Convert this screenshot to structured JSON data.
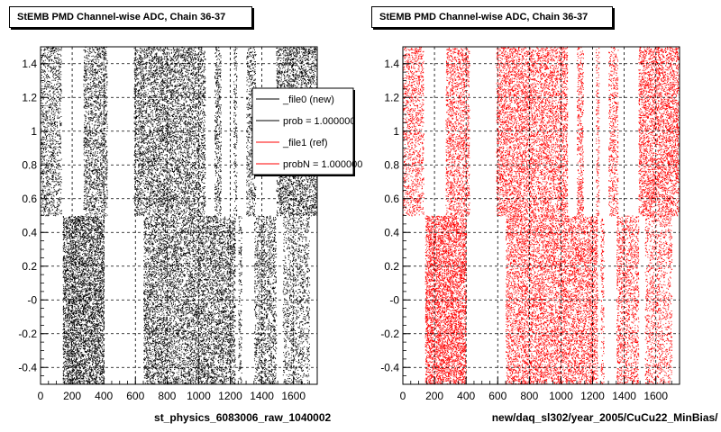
{
  "chart_data": [
    {
      "type": "scatter",
      "title": "StEMB PMD Channel-wise ADC, Chain 36-37",
      "xlabel": "st_physics_6083006_raw_1040002",
      "ylabel": "",
      "xlim": [
        0,
        1750
      ],
      "ylim": [
        -0.5,
        1.5
      ],
      "xticks": [
        0,
        200,
        400,
        600,
        800,
        1000,
        1200,
        1400,
        1600
      ],
      "yticks": [
        -0.4,
        -0.2,
        0,
        0.2,
        0.4,
        0.6,
        0.8,
        1,
        1.2,
        1.4
      ],
      "ytick_labels": [
        "-0.4",
        "-0.2",
        "-0",
        "0.2",
        "0.4",
        "0.6",
        "0.8",
        "1",
        "1.2",
        "1.4"
      ],
      "grid": true,
      "point_color": "#000000",
      "upper_bands": [
        {
          "x": [
            0,
            130
          ],
          "density": 0.5
        },
        {
          "x": [
            270,
            420
          ],
          "density": 0.6
        },
        {
          "x": [
            590,
            800
          ],
          "density": 0.7
        },
        {
          "x": [
            800,
            1040
          ],
          "density": 0.65
        },
        {
          "x": [
            1100,
            1140
          ],
          "density": 0.6
        },
        {
          "x": [
            1220,
            1240
          ],
          "density": 0.5
        },
        {
          "x": [
            1300,
            1360
          ],
          "density": 0.5
        },
        {
          "x": [
            1490,
            1750
          ],
          "density": 0.75
        }
      ],
      "lower_bands": [
        {
          "x": [
            140,
            400
          ],
          "density": 1.0
        },
        {
          "x": [
            650,
            1230
          ],
          "density": 0.7
        },
        {
          "x": [
            1250,
            1270
          ],
          "density": 0.5
        },
        {
          "x": [
            1350,
            1490
          ],
          "density": 0.55
        },
        {
          "x": [
            1530,
            1700
          ],
          "density": 0.4
        }
      ],
      "legend": {
        "placement": "top-right",
        "entries": [
          {
            "label": "_file0 (new)",
            "color": "#000000"
          },
          {
            "label": "prob = 1.000000",
            "color": "#000000"
          },
          {
            "label": "_file1 (ref)",
            "color": "#ff0000"
          },
          {
            "label": "probN = 1.000000",
            "color": "#ff0000"
          }
        ]
      }
    },
    {
      "type": "scatter",
      "title": "StEMB PMD Channel-wise ADC, Chain 36-37",
      "xlabel": "new/daq_sl302/year_2005/CuCu22_MinBias/",
      "ylabel": "",
      "xlim": [
        0,
        1750
      ],
      "ylim": [
        -0.5,
        1.5
      ],
      "xticks": [
        0,
        200,
        400,
        600,
        800,
        1000,
        1200,
        1400,
        1600
      ],
      "yticks": [
        -0.4,
        -0.2,
        0,
        0.2,
        0.4,
        0.6,
        0.8,
        1,
        1.2,
        1.4
      ],
      "ytick_labels": [
        "-0.4",
        "-0.2",
        "-0",
        "0.2",
        "0.4",
        "0.6",
        "0.8",
        "1",
        "1.2",
        "1.4"
      ],
      "grid": true,
      "point_color": "#ff0000",
      "upper_bands": [
        {
          "x": [
            0,
            130
          ],
          "density": 0.5
        },
        {
          "x": [
            270,
            420
          ],
          "density": 0.6
        },
        {
          "x": [
            590,
            800
          ],
          "density": 0.7
        },
        {
          "x": [
            800,
            1040
          ],
          "density": 0.65
        },
        {
          "x": [
            1100,
            1140
          ],
          "density": 0.6
        },
        {
          "x": [
            1220,
            1240
          ],
          "density": 0.5
        },
        {
          "x": [
            1300,
            1360
          ],
          "density": 0.5
        },
        {
          "x": [
            1490,
            1750
          ],
          "density": 0.75
        }
      ],
      "lower_bands": [
        {
          "x": [
            140,
            400
          ],
          "density": 1.0
        },
        {
          "x": [
            650,
            1230
          ],
          "density": 0.7
        },
        {
          "x": [
            1250,
            1270
          ],
          "density": 0.5
        },
        {
          "x": [
            1350,
            1490
          ],
          "density": 0.55
        },
        {
          "x": [
            1530,
            1700
          ],
          "density": 0.4
        }
      ]
    }
  ]
}
